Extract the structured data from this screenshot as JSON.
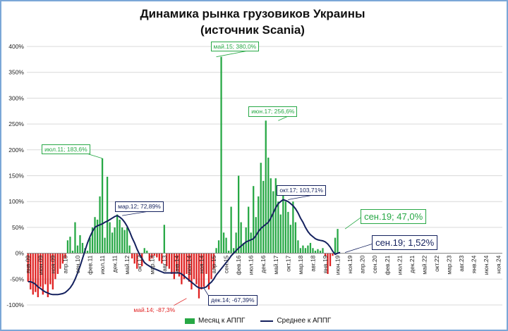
{
  "chart_data": {
    "type": "bar",
    "title": "Динамика рынка грузовиков Украины",
    "subtitle": "(источник Scania)",
    "ylim": [
      -100,
      400
    ],
    "yticks": [
      -100,
      -50,
      0,
      50,
      100,
      150,
      200,
      250,
      300,
      350,
      400
    ],
    "ytick_labels": [
      "-100%",
      "-50%",
      "0%",
      "50%",
      "100%",
      "150%",
      "200%",
      "250%",
      "300%",
      "350%",
      "400%"
    ],
    "grid": true,
    "legend_position": "bottom",
    "x_start": "2009-01",
    "x_end": "2024-12",
    "xtick_labels": [
      "янв.09",
      "июн.09",
      "ноя.09",
      "апр.10",
      "сен.10",
      "фев.11",
      "июл.11",
      "дек.11",
      "май.12",
      "окт.12",
      "мар.13",
      "авг.13",
      "янв.14",
      "июн.14",
      "ноя.14",
      "апр.15",
      "сен.15",
      "фев.16",
      "июл.16",
      "дек.16",
      "май.17",
      "окт.17",
      "мар.18",
      "авг.18",
      "янв.19",
      "июн.19",
      "ноя.19",
      "апр.20",
      "сен.20",
      "фев.21",
      "июл.21",
      "дек.21",
      "май.22",
      "окт.22",
      "мар.23",
      "авг.23",
      "янв.24",
      "июн.24",
      "ноя.24"
    ],
    "series": [
      {
        "name": "Месяц к АППГ",
        "kind": "bar",
        "color": "#27a845",
        "negative_color": "#e02020",
        "values": [
          -55,
          -70,
          -80,
          -75,
          -85,
          -65,
          -80,
          -60,
          -85,
          -60,
          -70,
          -50,
          -40,
          -30,
          -20,
          -10,
          25,
          32,
          5,
          60,
          15,
          35,
          20,
          10,
          5,
          30,
          50,
          70,
          65,
          110,
          183.6,
          30,
          148,
          60,
          40,
          50,
          75,
          65,
          50,
          45,
          50,
          15,
          -10,
          -20,
          -30,
          -5,
          -25,
          10,
          5,
          -15,
          -10,
          -5,
          -8,
          -15,
          -20,
          55,
          -25,
          -30,
          -40,
          -50,
          -35,
          -45,
          -60,
          -50,
          -40,
          -55,
          -70,
          -50,
          -60,
          -87.3,
          -70,
          -65,
          -40,
          -70,
          -50,
          -30,
          10,
          25,
          380,
          40,
          30,
          5,
          90,
          10,
          40,
          150,
          60,
          20,
          50,
          90,
          40,
          130,
          70,
          110,
          175,
          140,
          256.6,
          185,
          145,
          120,
          145,
          100,
          75,
          130,
          100,
          80,
          55,
          100,
          60,
          25,
          10,
          15,
          10,
          15,
          20,
          10,
          5,
          8,
          5,
          10,
          -5,
          -40,
          -25,
          -5,
          30,
          47
        ]
      },
      {
        "name": "Среднее к АППГ",
        "kind": "line",
        "color": "#14215e",
        "values": [
          -55,
          -55,
          -57,
          -60,
          -65,
          -68,
          -72,
          -75,
          -77,
          -79,
          -80,
          -80,
          -80,
          -79,
          -78,
          -76,
          -72,
          -67,
          -60,
          -50,
          -38,
          -25,
          -10,
          5,
          20,
          32,
          42,
          50,
          53,
          55,
          57,
          60,
          62,
          65,
          68,
          71,
          72.89,
          70,
          66,
          60,
          52,
          42,
          30,
          20,
          8,
          -2,
          -10,
          -18,
          -22,
          -25,
          -28,
          -30,
          -32,
          -34,
          -36,
          -38,
          -38,
          -38,
          -38,
          -38,
          -38,
          -38,
          -40,
          -44,
          -48,
          -52,
          -56,
          -60,
          -64,
          -67,
          -67.39,
          -67,
          -65,
          -60,
          -56,
          -50,
          -42,
          -36,
          -30,
          -24,
          -18,
          -12,
          -5,
          0,
          5,
          10,
          14,
          18,
          22,
          24,
          26,
          28,
          34,
          42,
          48,
          52,
          56,
          60,
          68,
          78,
          88,
          96,
          100,
          103.71,
          102,
          100,
          96,
          92,
          86,
          78,
          68,
          60,
          50,
          42,
          36,
          32,
          28,
          26,
          25,
          24,
          22,
          18,
          12,
          4,
          -2,
          0,
          1.52
        ]
      }
    ],
    "annotations": [
      {
        "label": "май.15; 380,0%",
        "color": "#27a845",
        "x": 76,
        "y": 380
      },
      {
        "label": "июн.17; 256,6%",
        "color": "#27a845",
        "x": 101,
        "y": 256.6
      },
      {
        "label": "июл.11; 183,6%",
        "color": "#27a845",
        "x": 30,
        "y": 183.6
      },
      {
        "label": "мар.12; 72,89%",
        "color": "#14215e",
        "x": 38,
        "y": 72.89
      },
      {
        "label": "окт.17; 103,71%",
        "color": "#14215e",
        "x": 105,
        "y": 103.71
      },
      {
        "label": "май.14; -87,3%",
        "color": "#e02020",
        "x": 64,
        "y": -87.3
      },
      {
        "label": "дек.14; -67,39%",
        "color": "#14215e",
        "x": 71,
        "y": -67.39
      },
      {
        "label": "сен.19; 47,0%",
        "color": "#27a845",
        "x": 128,
        "y": 47
      },
      {
        "label": "сен.19; 1,52%",
        "color": "#14215e",
        "x": 128,
        "y": 1.52
      }
    ]
  }
}
